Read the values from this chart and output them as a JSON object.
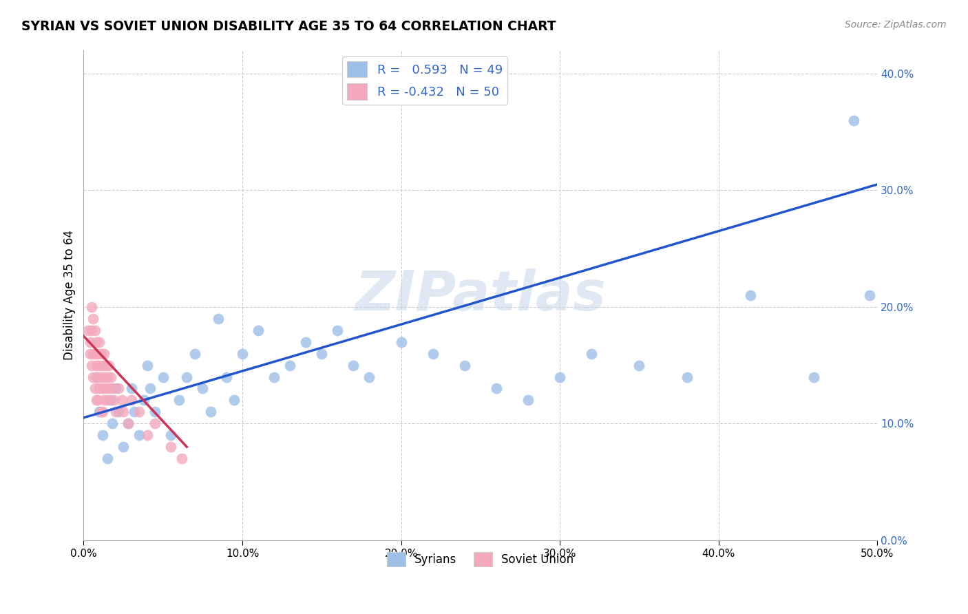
{
  "title": "SYRIAN VS SOVIET UNION DISABILITY AGE 35 TO 64 CORRELATION CHART",
  "source": "Source: ZipAtlas.com",
  "ylabel": "Disability Age 35 to 64",
  "xlim": [
    0.0,
    0.5
  ],
  "ylim": [
    0.0,
    0.42
  ],
  "xticks": [
    0.0,
    0.1,
    0.2,
    0.3,
    0.4,
    0.5
  ],
  "xtick_labels": [
    "0.0%",
    "10.0%",
    "20.0%",
    "30.0%",
    "40.0%",
    "50.0%"
  ],
  "yticks": [
    0.0,
    0.1,
    0.2,
    0.3,
    0.4
  ],
  "ytick_labels": [
    "0.0%",
    "10.0%",
    "20.0%",
    "30.0%",
    "40.0%"
  ],
  "grid_color": "#cccccc",
  "watermark": "ZIPatlas",
  "watermark_color": "#c8d8ea",
  "blue_color": "#9dbfe8",
  "pink_color": "#f4a8bc",
  "blue_line_color": "#2255cc",
  "pink_line_color": "#cc3355",
  "legend_r_blue": " 0.593",
  "legend_n_blue": "49",
  "legend_r_pink": "-0.432",
  "legend_n_pink": "50",
  "legend_label_blue": "Syrians",
  "legend_label_pink": "Soviet Union",
  "tick_label_color": "#3366cc",
  "blue_line_x0": 0.0,
  "blue_line_y0": 0.105,
  "blue_line_x1": 0.5,
  "blue_line_y1": 0.305,
  "pink_line_x0": 0.0,
  "pink_line_y0": 0.175,
  "pink_line_x1": 0.065,
  "pink_line_y1": 0.08,
  "syrians_x": [
    0.008,
    0.01,
    0.012,
    0.015,
    0.017,
    0.018,
    0.02,
    0.022,
    0.025,
    0.028,
    0.03,
    0.032,
    0.035,
    0.038,
    0.04,
    0.042,
    0.045,
    0.05,
    0.055,
    0.06,
    0.065,
    0.07,
    0.075,
    0.08,
    0.085,
    0.09,
    0.095,
    0.1,
    0.11,
    0.12,
    0.13,
    0.14,
    0.15,
    0.16,
    0.17,
    0.18,
    0.2,
    0.22,
    0.24,
    0.26,
    0.28,
    0.3,
    0.32,
    0.35,
    0.38,
    0.42,
    0.46,
    0.485,
    0.495
  ],
  "syrians_y": [
    0.14,
    0.11,
    0.09,
    0.07,
    0.12,
    0.1,
    0.13,
    0.11,
    0.08,
    0.1,
    0.13,
    0.11,
    0.09,
    0.12,
    0.15,
    0.13,
    0.11,
    0.14,
    0.09,
    0.12,
    0.14,
    0.16,
    0.13,
    0.11,
    0.19,
    0.14,
    0.12,
    0.16,
    0.18,
    0.14,
    0.15,
    0.17,
    0.16,
    0.18,
    0.15,
    0.14,
    0.17,
    0.16,
    0.15,
    0.13,
    0.12,
    0.14,
    0.16,
    0.15,
    0.14,
    0.21,
    0.14,
    0.36,
    0.21
  ],
  "soviet_x": [
    0.003,
    0.004,
    0.004,
    0.005,
    0.005,
    0.005,
    0.006,
    0.006,
    0.006,
    0.007,
    0.007,
    0.007,
    0.008,
    0.008,
    0.008,
    0.009,
    0.009,
    0.009,
    0.01,
    0.01,
    0.01,
    0.011,
    0.011,
    0.011,
    0.012,
    0.012,
    0.012,
    0.013,
    0.013,
    0.013,
    0.014,
    0.014,
    0.015,
    0.015,
    0.016,
    0.016,
    0.017,
    0.018,
    0.019,
    0.02,
    0.022,
    0.024,
    0.025,
    0.028,
    0.03,
    0.035,
    0.04,
    0.045,
    0.055,
    0.062
  ],
  "soviet_y": [
    0.18,
    0.17,
    0.16,
    0.2,
    0.18,
    0.15,
    0.19,
    0.16,
    0.14,
    0.18,
    0.16,
    0.13,
    0.17,
    0.15,
    0.12,
    0.16,
    0.14,
    0.12,
    0.17,
    0.15,
    0.13,
    0.16,
    0.14,
    0.11,
    0.15,
    0.13,
    0.11,
    0.16,
    0.14,
    0.12,
    0.15,
    0.13,
    0.14,
    0.12,
    0.15,
    0.13,
    0.14,
    0.13,
    0.12,
    0.11,
    0.13,
    0.12,
    0.11,
    0.1,
    0.12,
    0.11,
    0.09,
    0.1,
    0.08,
    0.07
  ]
}
